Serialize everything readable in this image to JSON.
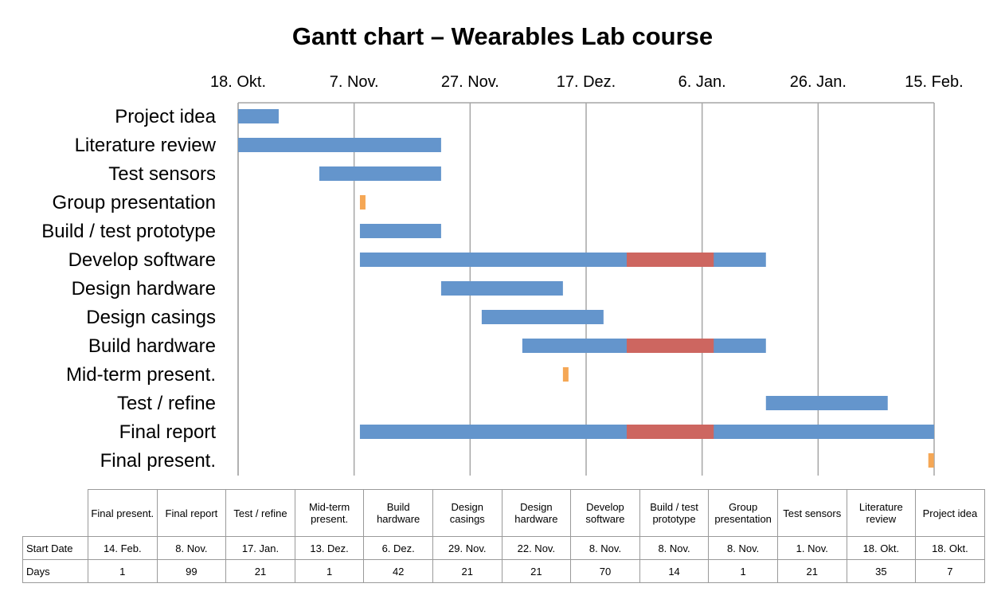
{
  "chart_data": {
    "type": "gantt",
    "title": "Gantt chart – Wearables Lab course",
    "x_axis": {
      "position": "top",
      "start": "2014-10-18",
      "end": "2015-02-15",
      "tick_labels": [
        "18. Okt.",
        "7. Nov.",
        "27. Nov.",
        "17. Dez.",
        "6. Jan.",
        "26. Jan.",
        "15. Feb."
      ],
      "tick_dates": [
        "2014-10-18",
        "2014-11-07",
        "2014-11-27",
        "2014-12-17",
        "2015-01-06",
        "2015-01-26",
        "2015-02-15"
      ],
      "grid": true
    },
    "colors": {
      "task": "#6495cc",
      "milestone": "#f5a755",
      "break": "#cd6660"
    },
    "break_periods": [
      {
        "start": "2014-12-24",
        "end": "2015-01-08"
      }
    ],
    "tasks": [
      {
        "name": "Project idea",
        "start": "2014-10-18",
        "days": 7,
        "kind": "task",
        "shows_break": false
      },
      {
        "name": "Literature review",
        "start": "2014-10-18",
        "days": 35,
        "kind": "task",
        "shows_break": false
      },
      {
        "name": "Test sensors",
        "start": "2014-11-01",
        "days": 21,
        "kind": "task",
        "shows_break": false
      },
      {
        "name": "Group presentation",
        "start": "2014-11-08",
        "days": 1,
        "kind": "milestone",
        "shows_break": false
      },
      {
        "name": "Build / test prototype",
        "start": "2014-11-08",
        "days": 14,
        "kind": "task",
        "shows_break": false
      },
      {
        "name": "Develop software",
        "start": "2014-11-08",
        "days": 70,
        "kind": "task",
        "shows_break": true
      },
      {
        "name": "Design hardware",
        "start": "2014-11-22",
        "days": 21,
        "kind": "task",
        "shows_break": false
      },
      {
        "name": "Design casings",
        "start": "2014-11-29",
        "days": 21,
        "kind": "task",
        "shows_break": false
      },
      {
        "name": "Build hardware",
        "start": "2014-12-06",
        "days": 42,
        "kind": "task",
        "shows_break": true
      },
      {
        "name": "Mid-term present.",
        "start": "2014-12-13",
        "days": 1,
        "kind": "milestone",
        "shows_break": false
      },
      {
        "name": "Test / refine",
        "start": "2015-01-17",
        "days": 21,
        "kind": "task",
        "shows_break": false
      },
      {
        "name": "Final report",
        "start": "2014-11-08",
        "days": 99,
        "kind": "task",
        "shows_break": true
      },
      {
        "name": "Final present.",
        "start": "2015-02-14",
        "days": 1,
        "kind": "milestone",
        "shows_break": false
      }
    ]
  },
  "table": {
    "row_labels": [
      "Start Date",
      "Days"
    ],
    "columns": [
      {
        "header": "Final present.",
        "start": "14. Feb.",
        "days": "1"
      },
      {
        "header": "Final report",
        "start": "8. Nov.",
        "days": "99"
      },
      {
        "header": "Test / refine",
        "start": "17. Jan.",
        "days": "21"
      },
      {
        "header": "Mid-term present.",
        "start": "13. Dez.",
        "days": "1"
      },
      {
        "header": "Build hardware",
        "start": "6. Dez.",
        "days": "42"
      },
      {
        "header": "Design casings",
        "start": "29. Nov.",
        "days": "21"
      },
      {
        "header": "Design hardware",
        "start": "22. Nov.",
        "days": "21"
      },
      {
        "header": "Develop software",
        "start": "8. Nov.",
        "days": "70"
      },
      {
        "header": "Build / test prototype",
        "start": "8. Nov.",
        "days": "14"
      },
      {
        "header": "Group presentation",
        "start": "8. Nov.",
        "days": "1"
      },
      {
        "header": "Test sensors",
        "start": "1. Nov.",
        "days": "21"
      },
      {
        "header": "Literature review",
        "start": "18. Okt.",
        "days": "35"
      },
      {
        "header": "Project idea",
        "start": "18. Okt.",
        "days": "7"
      }
    ]
  }
}
